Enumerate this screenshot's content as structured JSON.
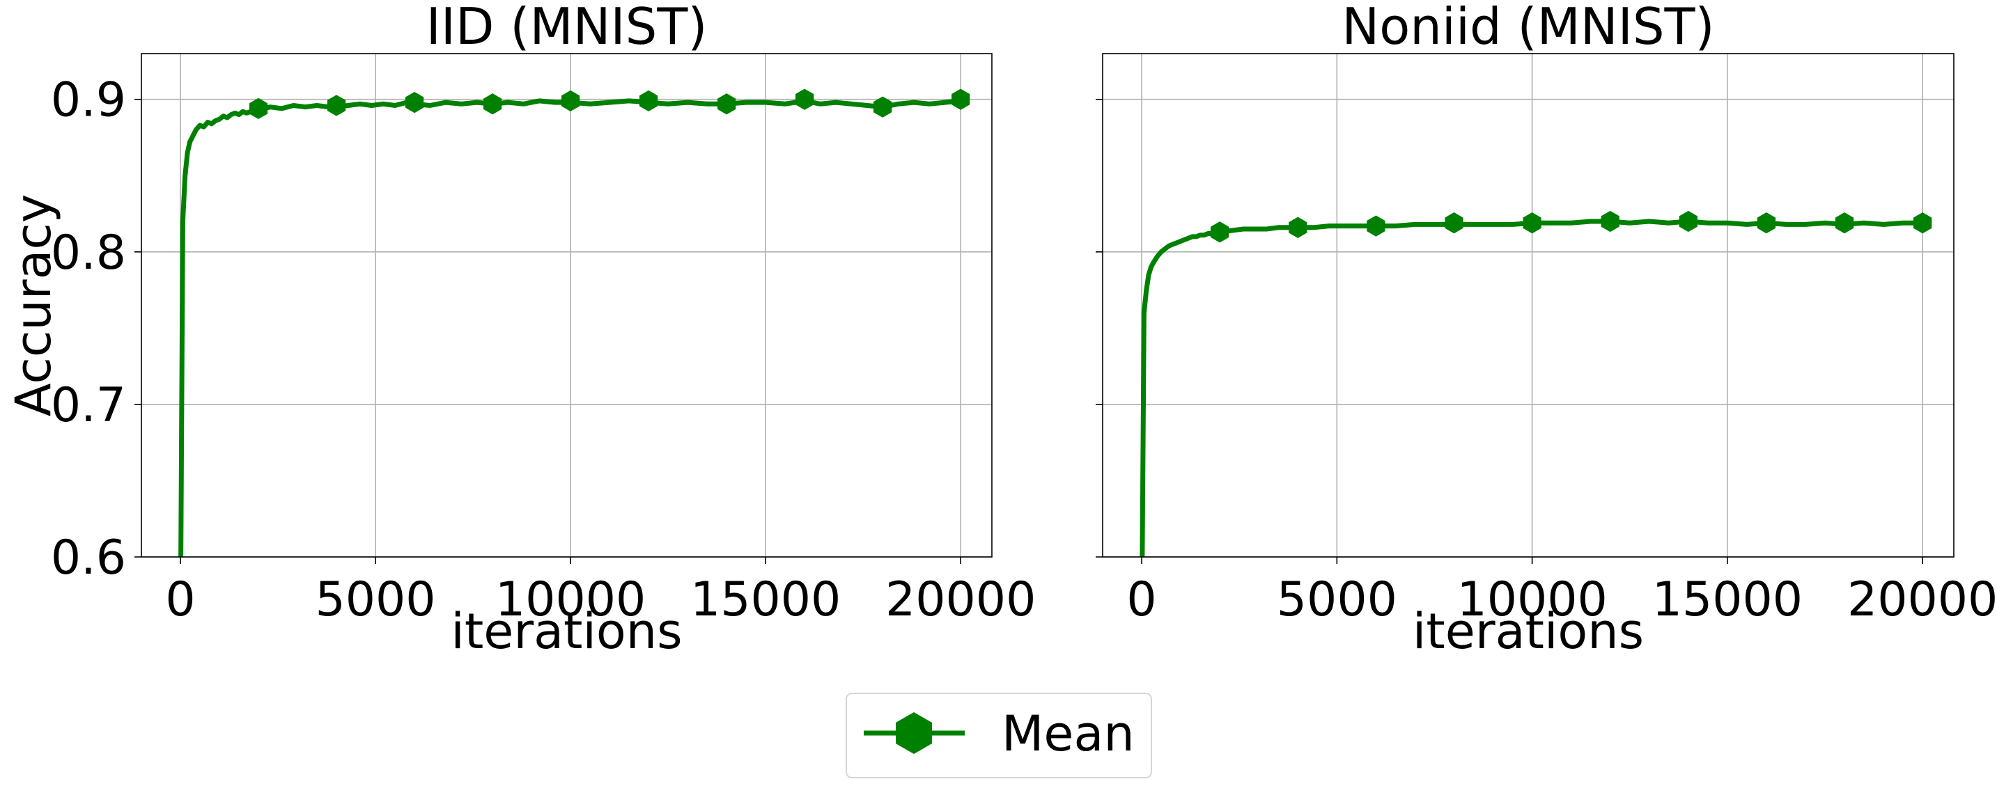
{
  "chart_data": [
    {
      "type": "line",
      "title": "IID (MNIST)",
      "xlabel": "iterations",
      "ylabel": "Accuracy",
      "xlim": [
        -1000,
        20800
      ],
      "ylim": [
        0.6,
        0.93
      ],
      "xticks": [
        0,
        5000,
        10000,
        15000,
        20000
      ],
      "xtick_labels": [
        "0",
        "5000",
        "10000",
        "15000",
        "20000"
      ],
      "yticks": [
        0.6,
        0.7,
        0.8,
        0.9
      ],
      "ytick_labels": [
        "0.6",
        "0.7",
        "0.8",
        "0.9"
      ],
      "grid": true,
      "series": [
        {
          "name": "Mean",
          "color": "#008000",
          "marker": "hexagon",
          "x": [
            0,
            60,
            120,
            180,
            240,
            300,
            400,
            500,
            600,
            700,
            800,
            900,
            1000,
            1100,
            1200,
            1300,
            1400,
            1500,
            1600,
            1700,
            1800,
            1900,
            2000,
            2300,
            2600,
            2900,
            3200,
            3500,
            3800,
            4000,
            4300,
            4600,
            4900,
            5200,
            5500,
            5800,
            6000,
            6400,
            6800,
            7200,
            7600,
            8000,
            8400,
            8800,
            9200,
            9600,
            10000,
            10500,
            11000,
            11500,
            12000,
            12500,
            13000,
            13500,
            14000,
            14500,
            15000,
            15500,
            16000,
            16400,
            16800,
            17200,
            17600,
            18000,
            18400,
            18800,
            19200,
            19600,
            20000
          ],
          "y": [
            0.55,
            0.82,
            0.85,
            0.865,
            0.872,
            0.875,
            0.88,
            0.883,
            0.882,
            0.885,
            0.884,
            0.886,
            0.887,
            0.889,
            0.888,
            0.89,
            0.891,
            0.89,
            0.892,
            0.891,
            0.892,
            0.893,
            0.893,
            0.895,
            0.894,
            0.896,
            0.895,
            0.896,
            0.895,
            0.895,
            0.896,
            0.897,
            0.896,
            0.897,
            0.896,
            0.898,
            0.897,
            0.896,
            0.898,
            0.897,
            0.898,
            0.897,
            0.898,
            0.897,
            0.899,
            0.898,
            0.898,
            0.897,
            0.898,
            0.899,
            0.898,
            0.897,
            0.898,
            0.897,
            0.897,
            0.898,
            0.898,
            0.897,
            0.899,
            0.897,
            0.898,
            0.897,
            0.896,
            0.895,
            0.897,
            0.898,
            0.897,
            0.898,
            0.899
          ],
          "marker_x": [
            2000,
            4000,
            6000,
            8000,
            10000,
            12000,
            14000,
            16000,
            18000,
            20000
          ],
          "marker_y": [
            0.894,
            0.896,
            0.898,
            0.897,
            0.899,
            0.899,
            0.897,
            0.9,
            0.895,
            0.9
          ]
        }
      ]
    },
    {
      "type": "line",
      "title": "Noniid (MNIST)",
      "xlabel": "iterations",
      "ylabel": "",
      "xlim": [
        -1000,
        20800
      ],
      "ylim": [
        0.6,
        0.93
      ],
      "xticks": [
        0,
        5000,
        10000,
        15000,
        20000
      ],
      "xtick_labels": [
        "0",
        "5000",
        "10000",
        "15000",
        "20000"
      ],
      "yticks": [
        0.6,
        0.7,
        0.8,
        0.9
      ],
      "ytick_labels": [],
      "grid": true,
      "series": [
        {
          "name": "Mean",
          "color": "#008000",
          "marker": "hexagon",
          "x": [
            0,
            60,
            120,
            180,
            240,
            300,
            400,
            500,
            600,
            700,
            800,
            900,
            1000,
            1100,
            1200,
            1300,
            1400,
            1500,
            1600,
            1700,
            1800,
            1900,
            2000,
            2300,
            2600,
            2900,
            3200,
            3500,
            3800,
            4000,
            4400,
            4800,
            5200,
            5600,
            6000,
            6500,
            7000,
            7500,
            8000,
            8500,
            9000,
            9500,
            10000,
            10500,
            11000,
            11500,
            12000,
            12500,
            13000,
            13500,
            14000,
            14500,
            15000,
            15500,
            16000,
            16500,
            17000,
            17500,
            18000,
            18500,
            19000,
            19500,
            20000
          ],
          "y": [
            0.55,
            0.76,
            0.775,
            0.785,
            0.79,
            0.793,
            0.797,
            0.8,
            0.802,
            0.804,
            0.805,
            0.806,
            0.807,
            0.808,
            0.809,
            0.81,
            0.81,
            0.811,
            0.811,
            0.812,
            0.812,
            0.813,
            0.813,
            0.814,
            0.815,
            0.815,
            0.815,
            0.816,
            0.816,
            0.816,
            0.816,
            0.817,
            0.817,
            0.817,
            0.817,
            0.817,
            0.818,
            0.818,
            0.818,
            0.818,
            0.818,
            0.818,
            0.819,
            0.819,
            0.819,
            0.82,
            0.82,
            0.819,
            0.82,
            0.819,
            0.82,
            0.819,
            0.819,
            0.818,
            0.819,
            0.818,
            0.818,
            0.819,
            0.818,
            0.819,
            0.818,
            0.819,
            0.819
          ],
          "marker_x": [
            2000,
            4000,
            6000,
            8000,
            10000,
            12000,
            14000,
            16000,
            18000,
            20000
          ],
          "marker_y": [
            0.813,
            0.816,
            0.817,
            0.819,
            0.819,
            0.82,
            0.82,
            0.819,
            0.819,
            0.819
          ]
        }
      ]
    }
  ],
  "legend": {
    "placement": "bottom-center",
    "entries": [
      {
        "name": "Mean",
        "color": "#008000",
        "marker": "hexagon"
      }
    ]
  }
}
